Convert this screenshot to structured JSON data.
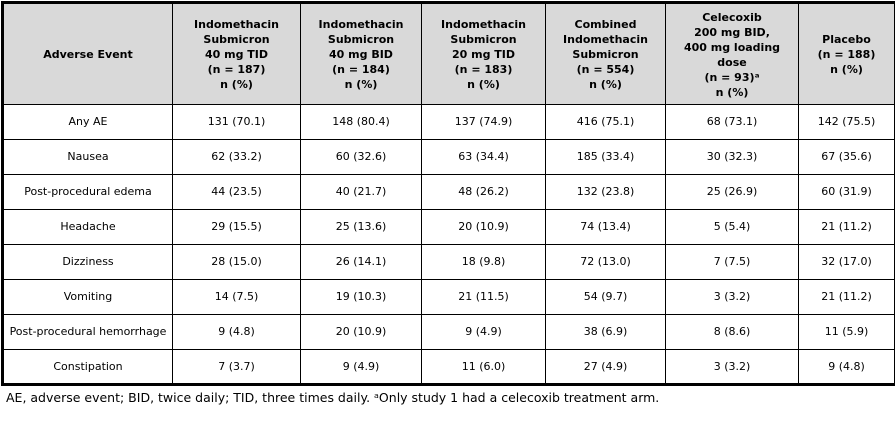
{
  "table": {
    "corner_header": "Adverse Event",
    "columns": [
      "Indomethacin\nSubmicron\n40 mg TID\n(n = 187)\nn (%)",
      "Indomethacin\nSubmicron\n40 mg BID\n(n = 184)\nn (%)",
      "Indomethacin\nSubmicron\n20 mg TID\n(n = 183)\nn (%)",
      "Combined\nIndomethacin\nSubmicron\n(n = 554)\nn (%)",
      "Celecoxib\n200 mg BID,\n400 mg loading\ndose\n(n = 93)ᵃ\nn (%)",
      "Placebo\n(n = 188)\nn (%)"
    ],
    "rows": [
      {
        "event": "Any AE",
        "values": [
          "131 (70.1)",
          "148 (80.4)",
          "137 (74.9)",
          "416 (75.1)",
          "68 (73.1)",
          "142 (75.5)"
        ]
      },
      {
        "event": "Nausea",
        "values": [
          "62 (33.2)",
          "60 (32.6)",
          "63 (34.4)",
          "185 (33.4)",
          "30 (32.3)",
          "67 (35.6)"
        ]
      },
      {
        "event": "Post-procedural edema",
        "values": [
          "44 (23.5)",
          "40 (21.7)",
          "48 (26.2)",
          "132 (23.8)",
          "25 (26.9)",
          "60 (31.9)"
        ]
      },
      {
        "event": "Headache",
        "values": [
          "29 (15.5)",
          "25 (13.6)",
          "20 (10.9)",
          "74 (13.4)",
          "5 (5.4)",
          "21 (11.2)"
        ]
      },
      {
        "event": "Dizziness",
        "values": [
          "28 (15.0)",
          "26 (14.1)",
          "18 (9.8)",
          "72 (13.0)",
          "7 (7.5)",
          "32 (17.0)"
        ]
      },
      {
        "event": "Vomiting",
        "values": [
          "14 (7.5)",
          "19 (10.3)",
          "21 (11.5)",
          "54 (9.7)",
          "3 (3.2)",
          "21 (11.2)"
        ]
      },
      {
        "event": "Post-procedural hemorrhage",
        "values": [
          "9 (4.8)",
          "20 (10.9)",
          "9 (4.9)",
          "38 (6.9)",
          "8 (8.6)",
          "11 (5.9)"
        ]
      },
      {
        "event": "Constipation",
        "values": [
          "7 (3.7)",
          "9 (4.9)",
          "11 (6.0)",
          "27 (4.9)",
          "3 (3.2)",
          "9 (4.8)"
        ]
      }
    ]
  },
  "footnote": "AE, adverse event; BID, twice daily; TID, three times daily. ᵃOnly study 1 had a celecoxib treatment arm.",
  "colors": {
    "header_bg": "#d9d9d9",
    "border": "#000000",
    "text": "#000000",
    "body_bg": "#ffffff"
  }
}
